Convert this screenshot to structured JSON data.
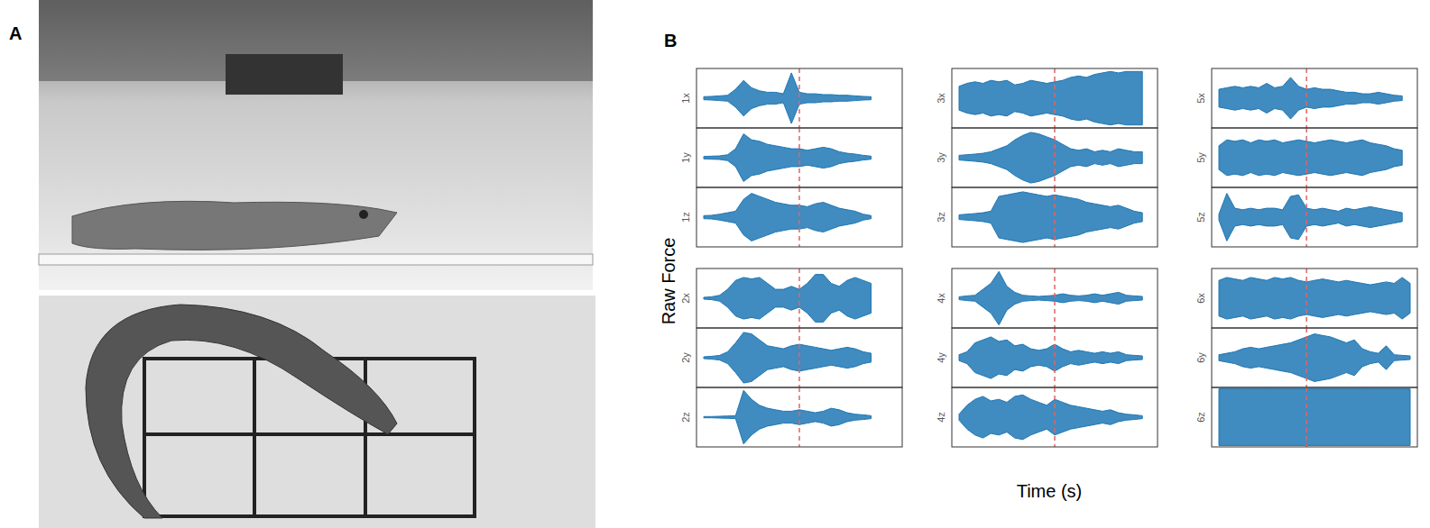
{
  "figure": {
    "panel_labels": [
      "A",
      "B"
    ],
    "y_label": "Raw Force",
    "x_label": "Time (s)"
  },
  "chart_data": [
    {
      "type": "area",
      "title": "1x",
      "color": "#1f77b4",
      "ylim": [
        -1,
        1
      ],
      "tick_labels": false,
      "event": 12,
      "values": [
        0.05,
        0.06,
        0.08,
        0.1,
        0.3,
        0.6,
        0.35,
        0.25,
        0.2,
        0.2,
        0.15,
        0.85,
        0.2,
        0.15,
        0.15,
        0.12,
        0.12,
        0.1,
        0.1,
        0.08,
        0.06,
        0.05,
        null,
        null,
        null
      ]
    },
    {
      "type": "area",
      "title": "1y",
      "color": "#1f77b4",
      "ylim": [
        -1,
        1
      ],
      "tick_labels": false,
      "event": 12,
      "values": [
        0.04,
        0.05,
        0.06,
        0.1,
        0.3,
        0.8,
        0.6,
        0.55,
        0.45,
        0.4,
        0.35,
        0.3,
        0.3,
        0.25,
        0.3,
        0.35,
        0.3,
        0.2,
        0.15,
        0.12,
        0.08,
        0.05,
        null,
        null,
        null
      ]
    },
    {
      "type": "area",
      "title": "1z",
      "color": "#1f77b4",
      "ylim": [
        -1,
        1
      ],
      "tick_labels": false,
      "event": 12,
      "values": [
        0.05,
        0.06,
        0.1,
        0.15,
        0.2,
        0.6,
        0.8,
        0.7,
        0.6,
        0.5,
        0.45,
        0.4,
        0.4,
        0.35,
        0.45,
        0.5,
        0.4,
        0.3,
        0.25,
        0.2,
        0.1,
        0.05,
        null,
        null,
        null
      ]
    },
    {
      "type": "area",
      "title": "2x",
      "color": "#1f77b4",
      "ylim": [
        -1,
        1
      ],
      "tick_labels": false,
      "event": 12,
      "values": [
        0.03,
        0.05,
        0.1,
        0.3,
        0.6,
        0.7,
        0.65,
        0.7,
        0.5,
        0.3,
        0.3,
        0.4,
        0.3,
        0.5,
        0.8,
        0.8,
        0.5,
        0.4,
        0.6,
        0.7,
        0.6,
        0.5,
        null,
        null,
        null
      ]
    },
    {
      "type": "area",
      "title": "2y",
      "color": "#1f77b4",
      "ylim": [
        -1,
        1
      ],
      "tick_labels": false,
      "event": 12,
      "values": [
        0.03,
        0.05,
        0.08,
        0.2,
        0.5,
        0.85,
        0.8,
        0.6,
        0.4,
        0.35,
        0.3,
        0.4,
        0.45,
        0.4,
        0.35,
        0.3,
        0.25,
        0.3,
        0.35,
        0.3,
        0.2,
        0.15,
        null,
        null,
        null
      ]
    },
    {
      "type": "area",
      "title": "2z",
      "color": "#1f77b4",
      "ylim": [
        -1,
        1
      ],
      "tick_labels": false,
      "event": 12,
      "values": [
        0.02,
        0.02,
        0.03,
        0.04,
        0.05,
        0.9,
        0.6,
        0.4,
        0.3,
        0.25,
        0.2,
        0.2,
        0.25,
        0.2,
        0.15,
        0.2,
        0.3,
        0.25,
        0.15,
        0.1,
        0.08,
        0.05,
        null,
        null,
        null
      ]
    },
    {
      "type": "area",
      "title": "3x",
      "color": "#1f77b4",
      "ylim": [
        -1,
        1
      ],
      "tick_labels": false,
      "event": 12,
      "values": [
        0.4,
        0.5,
        0.55,
        0.5,
        0.6,
        0.55,
        0.6,
        0.45,
        0.5,
        0.6,
        0.55,
        0.5,
        0.55,
        0.6,
        0.7,
        0.75,
        0.7,
        0.8,
        0.85,
        0.9,
        0.85,
        0.9,
        0.9,
        0.9,
        null
      ]
    },
    {
      "type": "area",
      "title": "3y",
      "color": "#1f77b4",
      "ylim": [
        -1,
        1
      ],
      "tick_labels": false,
      "event": 12,
      "values": [
        0.08,
        0.1,
        0.12,
        0.15,
        0.2,
        0.3,
        0.4,
        0.6,
        0.75,
        0.85,
        0.8,
        0.7,
        0.6,
        0.45,
        0.3,
        0.25,
        0.3,
        0.2,
        0.25,
        0.2,
        0.3,
        0.25,
        0.2,
        0.2,
        null
      ]
    },
    {
      "type": "area",
      "title": "3z",
      "color": "#1f77b4",
      "ylim": [
        -1,
        1
      ],
      "tick_labels": false,
      "event": 12,
      "values": [
        0.08,
        0.1,
        0.12,
        0.15,
        0.2,
        0.7,
        0.75,
        0.8,
        0.85,
        0.8,
        0.75,
        0.7,
        0.75,
        0.7,
        0.65,
        0.6,
        0.5,
        0.45,
        0.4,
        0.35,
        0.4,
        0.3,
        0.2,
        0.15,
        null
      ]
    },
    {
      "type": "area",
      "title": "4x",
      "color": "#1f77b4",
      "ylim": [
        -1,
        1
      ],
      "tick_labels": false,
      "event": 12,
      "values": [
        0.05,
        0.08,
        0.1,
        0.3,
        0.5,
        0.9,
        0.4,
        0.2,
        0.1,
        0.08,
        0.06,
        0.08,
        0.1,
        0.15,
        0.1,
        0.08,
        0.1,
        0.15,
        0.1,
        0.15,
        0.2,
        0.1,
        0.08,
        0.06,
        null
      ]
    },
    {
      "type": "area",
      "title": "4y",
      "color": "#1f77b4",
      "ylim": [
        -1,
        1
      ],
      "tick_labels": false,
      "event": 12,
      "values": [
        0.1,
        0.2,
        0.5,
        0.6,
        0.7,
        0.55,
        0.6,
        0.4,
        0.45,
        0.3,
        0.25,
        0.3,
        0.45,
        0.3,
        0.2,
        0.25,
        0.2,
        0.15,
        0.2,
        0.15,
        0.2,
        0.1,
        0.08,
        0.06,
        null
      ]
    },
    {
      "type": "area",
      "title": "4z",
      "color": "#1f77b4",
      "ylim": [
        -1,
        1
      ],
      "tick_labels": false,
      "event": 12,
      "values": [
        0.1,
        0.4,
        0.6,
        0.7,
        0.55,
        0.6,
        0.5,
        0.7,
        0.75,
        0.6,
        0.5,
        0.4,
        0.6,
        0.5,
        0.4,
        0.35,
        0.3,
        0.25,
        0.2,
        0.25,
        0.15,
        0.1,
        0.08,
        0.05,
        null
      ]
    },
    {
      "type": "area",
      "title": "5x",
      "color": "#1f77b4",
      "ylim": [
        -1,
        1
      ],
      "tick_labels": false,
      "event": 11,
      "values": [
        0.3,
        0.35,
        0.4,
        0.35,
        0.4,
        0.35,
        0.5,
        0.35,
        0.4,
        0.7,
        0.4,
        0.3,
        0.35,
        0.3,
        0.3,
        0.25,
        0.2,
        0.2,
        0.15,
        0.15,
        0.2,
        0.15,
        0.1,
        0.08,
        null
      ]
    },
    {
      "type": "area",
      "title": "5y",
      "color": "#1f77b4",
      "ylim": [
        -1,
        1
      ],
      "tick_labels": false,
      "event": 11,
      "values": [
        0.4,
        0.6,
        0.55,
        0.6,
        0.5,
        0.6,
        0.55,
        0.6,
        0.5,
        0.55,
        0.6,
        0.55,
        0.5,
        0.55,
        0.6,
        0.55,
        0.5,
        0.55,
        0.6,
        0.5,
        0.45,
        0.4,
        0.3,
        0.25,
        null
      ]
    },
    {
      "type": "area",
      "title": "5z",
      "color": "#1f77b4",
      "ylim": [
        -1,
        1
      ],
      "tick_labels": false,
      "event": 11,
      "values": [
        0.1,
        0.8,
        0.3,
        0.25,
        0.3,
        0.25,
        0.3,
        0.3,
        0.25,
        0.7,
        0.75,
        0.3,
        0.25,
        0.3,
        0.25,
        0.2,
        0.3,
        0.25,
        0.3,
        0.35,
        0.3,
        0.25,
        0.2,
        0.15,
        null
      ]
    },
    {
      "type": "area",
      "title": "6x",
      "color": "#1f77b4",
      "ylim": [
        -1,
        1
      ],
      "tick_labels": false,
      "event": 11,
      "values": [
        0.6,
        0.7,
        0.65,
        0.6,
        0.7,
        0.65,
        0.6,
        0.7,
        0.65,
        0.7,
        0.6,
        0.55,
        0.6,
        0.65,
        0.6,
        0.55,
        0.6,
        0.55,
        0.5,
        0.45,
        0.5,
        0.55,
        0.5,
        0.7,
        0.5
      ]
    },
    {
      "type": "area",
      "title": "6y",
      "color": "#1f77b4",
      "ylim": [
        -1,
        1
      ],
      "tick_labels": false,
      "event": 11,
      "values": [
        0.1,
        0.15,
        0.2,
        0.3,
        0.35,
        0.3,
        0.35,
        0.4,
        0.45,
        0.5,
        0.6,
        0.7,
        0.8,
        0.75,
        0.7,
        0.6,
        0.5,
        0.6,
        0.3,
        0.2,
        0.15,
        0.4,
        0.1,
        0.08,
        0.06
      ]
    },
    {
      "type": "area",
      "title": "6z",
      "color": "#1f77b4",
      "ylim": [
        -1,
        1
      ],
      "tick_labels": false,
      "event": 11,
      "values": [
        0.95,
        0.95,
        0.95,
        0.95,
        0.95,
        0.95,
        0.95,
        0.95,
        0.95,
        0.95,
        0.95,
        0.95,
        0.95,
        0.95,
        0.95,
        0.95,
        0.95,
        0.95,
        0.95,
        0.95,
        0.95,
        0.95,
        0.95,
        0.95,
        0.95
      ]
    }
  ]
}
